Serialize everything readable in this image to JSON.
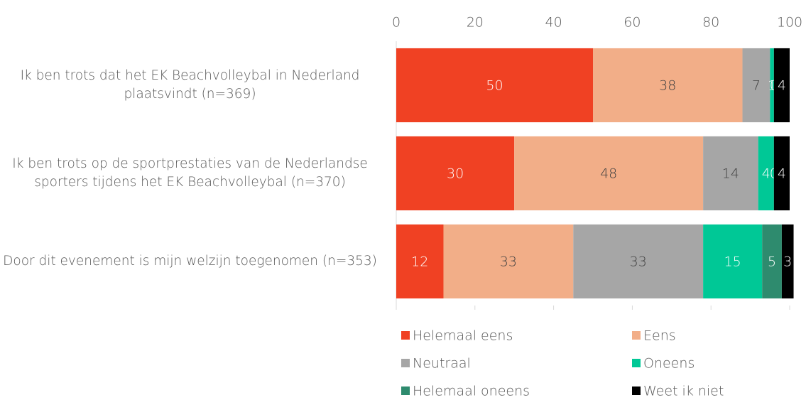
{
  "chart_data": {
    "type": "stacked_barh",
    "categories": [
      "Ik ben trots dat het EK Beachvolleybal in Nederland plaatsvindt (n=369)",
      "Ik ben trots op de sportprestaties van de Nederlandse sporters tijdens het EK Beachvolleybal (n=370)",
      "Door dit evenement is mijn welzijn toegenomen (n=353)"
    ],
    "series": [
      {
        "name": "Helemaal eens",
        "color": "#f04123",
        "values": [
          50,
          30,
          12
        ]
      },
      {
        "name": "Eens",
        "color": "#f2ae88",
        "values": [
          38,
          48,
          33
        ]
      },
      {
        "name": "Neutraal",
        "color": "#a6a6a6",
        "values": [
          7,
          14,
          33
        ]
      },
      {
        "name": "Oneens",
        "color": "#00c896",
        "values": [
          1,
          4,
          15
        ]
      },
      {
        "name": "Helemaal oneens",
        "color": "#2e8b6e",
        "values": [
          0,
          0,
          5
        ]
      },
      {
        "name": "Weet ik niet",
        "color": "#000000",
        "values": [
          4,
          4,
          3
        ]
      }
    ],
    "xlim": [
      0,
      100
    ],
    "xticks": [
      0,
      20,
      40,
      60,
      80,
      100
    ],
    "grid": false,
    "legend": "bottom"
  }
}
